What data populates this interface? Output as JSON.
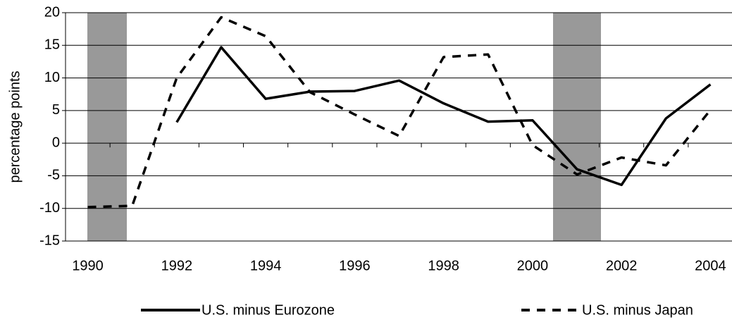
{
  "chart_data": {
    "type": "line",
    "y_label": "percentage points",
    "categories": [
      "1990",
      null,
      "1992",
      null,
      "1994",
      null,
      "1996",
      null,
      "1998",
      null,
      "2000",
      null,
      "2002",
      null,
      "2004"
    ],
    "series": [
      {
        "name": "U.S. minus Eurozone",
        "color": "#000000",
        "line_style": "solid",
        "values": [
          null,
          null,
          3.2,
          14.7,
          6.8,
          7.9,
          8.0,
          9.6,
          6.1,
          3.3,
          3.5,
          -4.0,
          -6.4,
          3.8,
          9.0
        ]
      },
      {
        "name": "U.S. minus Japan",
        "color": "#000000",
        "line_style": "dashed",
        "values": [
          -9.8,
          -9.6,
          10.0,
          19.3,
          16.4,
          7.8,
          4.4,
          1.1,
          13.2,
          13.6,
          -0.3,
          -4.8,
          -2.2,
          -3.4,
          5.1
        ]
      }
    ],
    "ylim": [
      -15,
      20
    ],
    "yticks": [
      -15,
      -10,
      -5,
      0,
      5,
      10,
      15,
      20
    ],
    "grid": true
  }
}
